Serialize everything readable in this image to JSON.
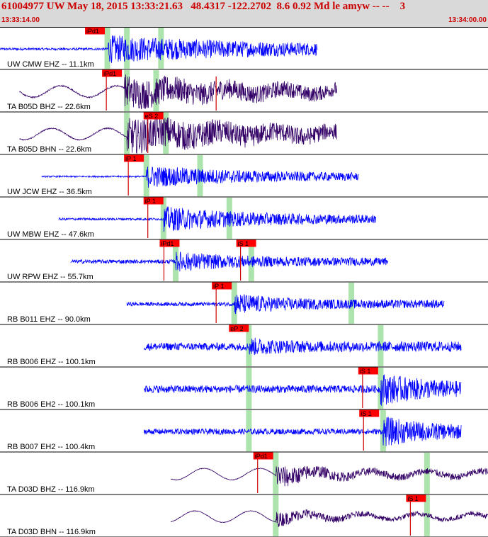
{
  "header": {
    "title": "61004977 UW May 18, 2015 13:33:21.63   48.4317 -122.2702  8.6 0.92 Md le amyw -- --    3",
    "time_start": "13:33:14.00",
    "time_end": "13:34:00.00"
  },
  "colors": {
    "header_text": "#cc0000",
    "header_bg": "#d9d9d9",
    "short_period_trace": "#0000ff",
    "broadband_trace": "#330066",
    "pick_label_bg": "#ff0000",
    "pick_line": "#cc0000",
    "predicted_band": "#99dd99"
  },
  "chart_data": {
    "type": "line",
    "x_start": "13:33:14.00",
    "x_end": "13:34:00.00",
    "traces": [
      {
        "label": "UW CMW EHZ -- 11.1km",
        "kind": "sp",
        "start": 0.0,
        "end": 0.65,
        "onset": 0.22,
        "amp": 0.55,
        "decay": 0.9,
        "noise": 0.06,
        "picks": [
          {
            "text": "iPd1",
            "x": 0.18,
            "red_line": false
          }
        ],
        "bands": [
          0.22,
          0.26,
          0.33
        ]
      },
      {
        "label": "TA B05D BHZ -- 22.6km",
        "kind": "bb",
        "start": 0.04,
        "end": 0.69,
        "onset": 0.255,
        "amp": 0.6,
        "decay": 0.7,
        "noise": 0.12,
        "picks": [
          {
            "text": "iPd1",
            "x": 0.215,
            "red_line": true
          },
          {
            "text": "",
            "x": 0.44,
            "red_line": true
          }
        ],
        "bands": [
          0.26,
          0.32
        ]
      },
      {
        "label": "TA B05D BHN -- 22.6km",
        "kind": "bb",
        "start": 0.04,
        "end": 0.69,
        "onset": 0.26,
        "amp": 0.7,
        "decay": 0.8,
        "noise": 0.1,
        "picks": [
          {
            "text": "eS 2",
            "x": 0.3,
            "red_line": true
          }
        ],
        "bands": [
          0.26,
          0.34
        ]
      },
      {
        "label": "UW JCW EHZ -- 36.5km",
        "kind": "sp",
        "start": 0.085,
        "end": 0.735,
        "onset": 0.3,
        "amp": 0.45,
        "decay": 0.6,
        "noise": 0.04,
        "picks": [
          {
            "text": "iP 1",
            "x": 0.26,
            "red_line": true
          }
        ],
        "bands": [
          0.3,
          0.41
        ]
      },
      {
        "label": "UW MBW EHZ -- 47.6km",
        "kind": "sp",
        "start": 0.12,
        "end": 0.77,
        "onset": 0.335,
        "amp": 0.5,
        "decay": 0.5,
        "noise": 0.06,
        "picks": [
          {
            "text": "iP 1",
            "x": 0.3,
            "red_line": true
          }
        ],
        "bands": [
          0.335,
          0.47
        ]
      },
      {
        "label": "UW RPW EHZ -- 55.7km",
        "kind": "sp",
        "start": 0.145,
        "end": 0.795,
        "onset": 0.36,
        "amp": 0.35,
        "decay": 0.4,
        "noise": 0.1,
        "picks": [
          {
            "text": "iPd1",
            "x": 0.333,
            "red_line": true
          },
          {
            "text": "iS 1",
            "x": 0.49,
            "red_line": true
          }
        ],
        "bands": [
          0.36,
          0.515
        ]
      },
      {
        "label": "RB B011 EHZ -- 90.0km",
        "kind": "sp",
        "start": 0.26,
        "end": 0.91,
        "onset": 0.48,
        "amp": 0.4,
        "decay": 0.3,
        "noise": 0.1,
        "picks": [
          {
            "text": "iP 1",
            "x": 0.44,
            "red_line": true
          }
        ],
        "bands": [
          0.48,
          0.72
        ]
      },
      {
        "label": "RB B006 EHZ -- 100.1km",
        "kind": "sp",
        "start": 0.295,
        "end": 0.945,
        "onset": 0.51,
        "amp": 0.25,
        "decay": 0.2,
        "noise": 0.2,
        "picks": [
          {
            "text": "eP 2",
            "x": 0.475,
            "red_line": false
          }
        ],
        "bands": [
          0.51,
          0.78
        ]
      },
      {
        "label": "RB B006 EH2 -- 100.1km",
        "kind": "sp",
        "start": 0.295,
        "end": 0.945,
        "onset": 0.78,
        "amp": 0.55,
        "decay": 0.25,
        "noise": 0.2,
        "picks": [
          {
            "text": "iS 1",
            "x": 0.74,
            "red_line": true
          }
        ],
        "bands": [
          0.51,
          0.78
        ]
      },
      {
        "label": "RB B007 EH2 -- 100.4km",
        "kind": "sp",
        "start": 0.295,
        "end": 0.945,
        "onset": 0.785,
        "amp": 0.55,
        "decay": 0.25,
        "noise": 0.15,
        "picks": [
          {
            "text": "iS 1",
            "x": 0.742,
            "red_line": true
          }
        ],
        "bands": [
          0.51,
          0.785
        ]
      },
      {
        "label": "TA D03D BHZ -- 116.9km",
        "kind": "bb",
        "start": 0.35,
        "end": 1.0,
        "onset": 0.565,
        "amp": 0.5,
        "decay": 0.2,
        "noise": 0.05,
        "picks": [
          {
            "text": "iPd1",
            "x": 0.525,
            "red_line": true
          }
        ],
        "bands": [
          0.565,
          0.875
        ]
      },
      {
        "label": "TA D03D BHN -- 116.9km",
        "kind": "bb",
        "start": 0.35,
        "end": 1.0,
        "onset": 0.565,
        "amp": 0.3,
        "decay": 0.2,
        "noise": 0.05,
        "picks": [
          {
            "text": "iS 1",
            "x": 0.838,
            "red_line": true
          }
        ],
        "bands": [
          0.565,
          0.875
        ]
      }
    ]
  }
}
